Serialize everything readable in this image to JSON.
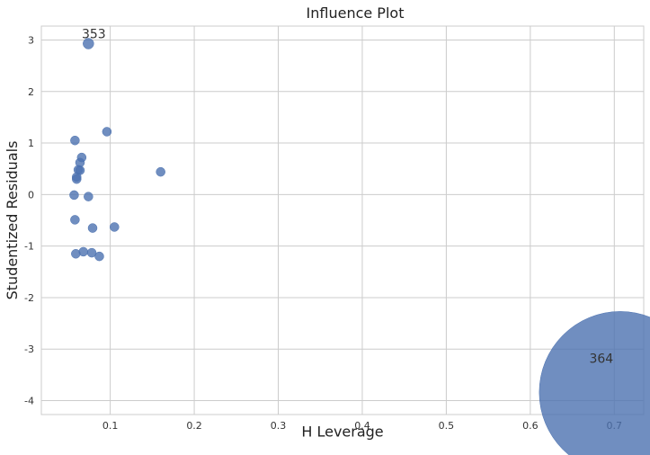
{
  "chart_data": {
    "type": "scatter",
    "title": "Influence Plot",
    "xlabel": "H Leverage",
    "ylabel": "Studentized Residuals",
    "xlim": [
      0.018,
      0.735
    ],
    "ylim": [
      -4.27,
      3.27
    ],
    "xticks": [
      0.1,
      0.2,
      0.3,
      0.4,
      0.5,
      0.6,
      0.7
    ],
    "xtick_labels": [
      "0.1",
      "0.2",
      "0.3",
      "0.4",
      "0.5",
      "0.6",
      "0.7"
    ],
    "yticks": [
      -4,
      -3,
      -2,
      -1,
      0,
      1,
      2,
      3
    ],
    "ytick_labels": [
      "-4",
      "-3",
      "-2",
      "-1",
      "0",
      "1",
      "2",
      "3"
    ],
    "grid": true,
    "marker_color": "#4c72b0",
    "points": [
      {
        "x": 0.074,
        "y": 2.93,
        "size": 1.2
      },
      {
        "x": 0.096,
        "y": 1.22,
        "size": 1
      },
      {
        "x": 0.058,
        "y": 1.05,
        "size": 1
      },
      {
        "x": 0.066,
        "y": 0.72,
        "size": 1
      },
      {
        "x": 0.064,
        "y": 0.62,
        "size": 1
      },
      {
        "x": 0.062,
        "y": 0.48,
        "size": 1
      },
      {
        "x": 0.064,
        "y": 0.47,
        "size": 1
      },
      {
        "x": 0.16,
        "y": 0.44,
        "size": 1
      },
      {
        "x": 0.06,
        "y": 0.34,
        "size": 1
      },
      {
        "x": 0.06,
        "y": 0.3,
        "size": 1
      },
      {
        "x": 0.057,
        "y": -0.01,
        "size": 1
      },
      {
        "x": 0.074,
        "y": -0.04,
        "size": 1
      },
      {
        "x": 0.058,
        "y": -0.49,
        "size": 1
      },
      {
        "x": 0.105,
        "y": -0.63,
        "size": 1
      },
      {
        "x": 0.079,
        "y": -0.65,
        "size": 1
      },
      {
        "x": 0.068,
        "y": -1.11,
        "size": 1
      },
      {
        "x": 0.078,
        "y": -1.13,
        "size": 1
      },
      {
        "x": 0.059,
        "y": -1.15,
        "size": 1
      },
      {
        "x": 0.087,
        "y": -1.2,
        "size": 1
      },
      {
        "x": 0.707,
        "y": -3.84,
        "size": 18
      }
    ],
    "annotations": [
      {
        "label": "353",
        "x": 0.074,
        "y": 2.93
      },
      {
        "label": "364",
        "x": 0.707,
        "y": -3.84
      }
    ]
  }
}
